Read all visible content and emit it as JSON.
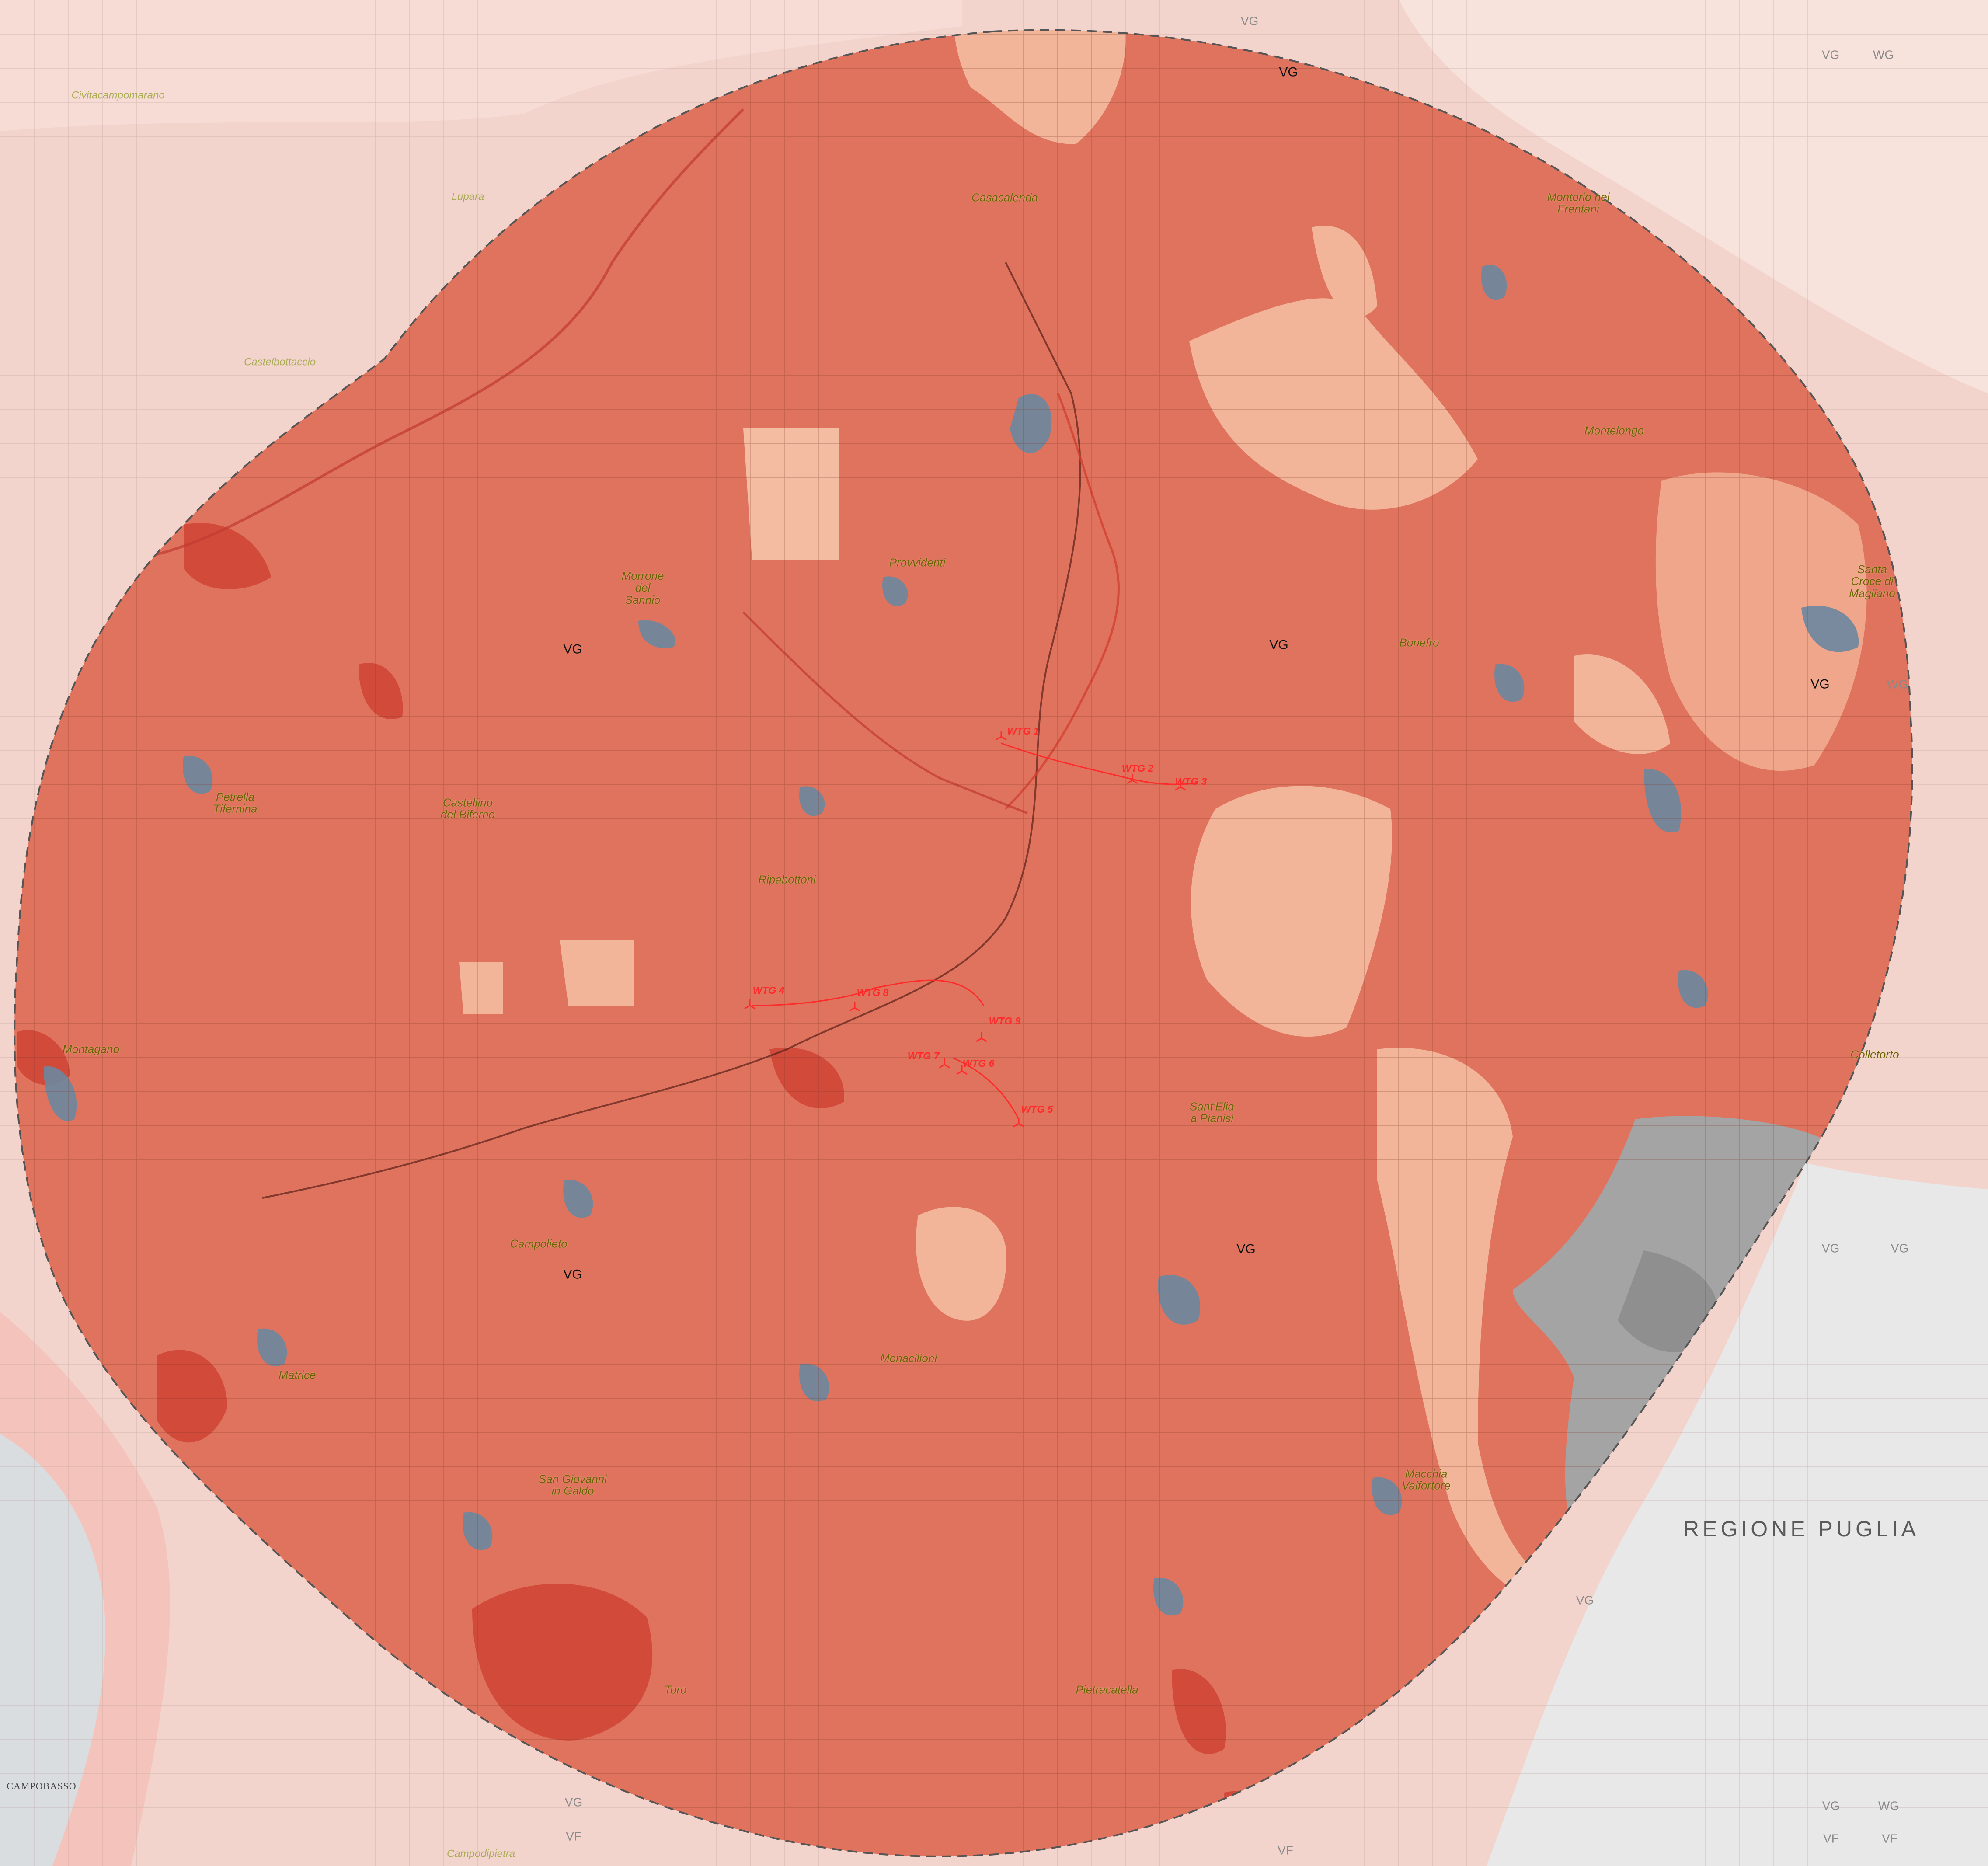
{
  "map": {
    "region_label": "REGIONE PUGLIA",
    "towns": [
      {
        "name": "Casacalenda"
      },
      {
        "name": "Montorio nei\nFrentani"
      },
      {
        "name": "Montelongo"
      },
      {
        "name": "Santa\nCroce di\nMagliano"
      },
      {
        "name": "Provvidenti"
      },
      {
        "name": "Morrone\ndel\nSannio"
      },
      {
        "name": "Bonefro"
      },
      {
        "name": "Petrella\nTifernina"
      },
      {
        "name": "Castellino\ndel Biferno"
      },
      {
        "name": "Ripabottoni"
      },
      {
        "name": "Montagano"
      },
      {
        "name": "Colletorto"
      },
      {
        "name": "Sant'Elia\na Pianisi"
      },
      {
        "name": "Campolieto"
      },
      {
        "name": "Matrice"
      },
      {
        "name": "Monacilioni"
      },
      {
        "name": "San Giovanni\nin Galdo"
      },
      {
        "name": "Macchia\nValfortore"
      },
      {
        "name": "Toro"
      },
      {
        "name": "Pietracatella"
      }
    ],
    "outside_towns": [
      {
        "name": "Civitacampomarano"
      },
      {
        "name": "Lupara"
      },
      {
        "name": "Castelbottaccio"
      },
      {
        "name": "Campodipietra"
      }
    ],
    "city_labels": [
      {
        "name": "CAMPOBASSO"
      }
    ],
    "turbines": [
      {
        "name": "WTG 1"
      },
      {
        "name": "WTG 2"
      },
      {
        "name": "WTG 3"
      },
      {
        "name": "WTG 4"
      },
      {
        "name": "WTG 5"
      },
      {
        "name": "WTG 6"
      },
      {
        "name": "WTG 7"
      },
      {
        "name": "WTG 8"
      },
      {
        "name": "WTG 9"
      }
    ],
    "zone_labels": [
      {
        "text": "VG"
      },
      {
        "text": "VG"
      },
      {
        "text": "VG"
      },
      {
        "text": "VG"
      },
      {
        "text": "VG"
      },
      {
        "text": "VG"
      }
    ],
    "outer_zone_labels": [
      {
        "text": "VG"
      },
      {
        "text": "VG"
      },
      {
        "text": "WG"
      },
      {
        "text": "WG"
      },
      {
        "text": "VG"
      },
      {
        "text": "VG"
      },
      {
        "text": "VG"
      },
      {
        "text": "VG"
      },
      {
        "text": "WG"
      },
      {
        "text": "VF"
      },
      {
        "text": "VF"
      },
      {
        "text": "VF"
      },
      {
        "text": "VF"
      },
      {
        "text": "VG"
      }
    ],
    "colors": {
      "buffer_fill": "#e0735d",
      "buffer_dark": "#d24a3a",
      "outside_bg": "#f2d4cc",
      "outside_pale": "#f8e6e0",
      "light_patch": "#f2b59a",
      "grey_patch": "#a4a4a4",
      "puglia_bg": "#e6e6e6",
      "settlement": "#6c87a0",
      "turbine_red": "#ff2a2a"
    }
  }
}
